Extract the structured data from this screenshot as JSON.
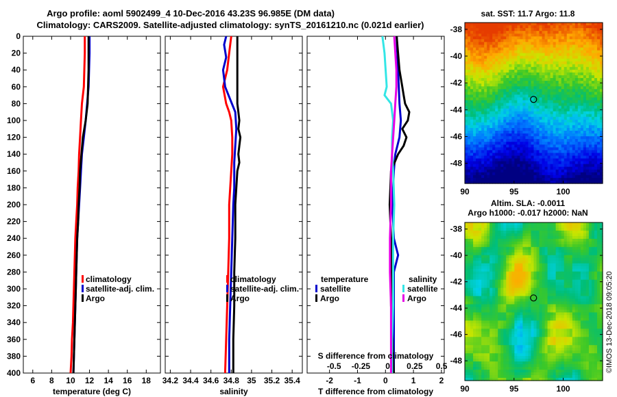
{
  "title": {
    "line1": "Argo profile: aoml 5902499_4 10-Dec-2016 43.23S 96.985E (DM data)",
    "line2": "Climatology: CARS2009. Satellite-adjusted climatology: synTS_20161210.nc (0.021d earlier)"
  },
  "colors": {
    "climatology": "#ff0000",
    "satellite_adj": "#0000cc",
    "argo": "#000000",
    "sat_salinity": "#33e6e6",
    "argo_salinity": "#e600e6",
    "circle": "#000000"
  },
  "depth_ticks": [
    0,
    20,
    40,
    60,
    80,
    100,
    120,
    140,
    160,
    180,
    200,
    220,
    240,
    260,
    280,
    300,
    320,
    340,
    360,
    380,
    400
  ],
  "chart_data": [
    {
      "type": "line",
      "name": "temperature-profile",
      "xlabel": "temperature (deg C)",
      "ylabel": "depth",
      "xlim": [
        5,
        19.5
      ],
      "ylim": [
        400,
        0
      ],
      "xticks": [
        6,
        8,
        10,
        12,
        14,
        16,
        18
      ],
      "xticklabels": [
        "6",
        "8",
        "10",
        "12",
        "14",
        "16",
        "18"
      ],
      "legend": [
        "climatology",
        "satellite-adj. clim.",
        "Argo"
      ],
      "series": [
        {
          "name": "climatology",
          "color": "#ff0000",
          "depth": [
            0,
            20,
            40,
            60,
            80,
            100,
            120,
            140,
            160,
            180,
            200,
            220,
            240,
            260,
            280,
            300,
            320,
            340,
            360,
            380,
            400
          ],
          "values": [
            11.5,
            11.5,
            11.45,
            11.4,
            11.2,
            11.1,
            11.0,
            10.9,
            10.85,
            10.75,
            10.7,
            10.6,
            10.5,
            10.45,
            10.4,
            10.35,
            10.3,
            10.25,
            10.15,
            10.1,
            10.0
          ]
        },
        {
          "name": "satellite-adj. clim.",
          "color": "#0000cc",
          "depth": [
            0,
            20,
            40,
            60,
            80,
            100,
            120,
            140,
            160,
            180,
            200,
            220,
            240,
            260,
            280,
            300,
            320,
            340,
            360,
            380,
            400
          ],
          "values": [
            12.0,
            12.0,
            11.95,
            11.9,
            11.75,
            11.6,
            11.4,
            11.2,
            11.1,
            11.0,
            10.9,
            10.8,
            10.7,
            10.65,
            10.6,
            10.55,
            10.5,
            10.45,
            10.4,
            10.35,
            10.3
          ]
        },
        {
          "name": "Argo",
          "color": "#000000",
          "depth": [
            0,
            20,
            40,
            60,
            80,
            100,
            120,
            140,
            160,
            180,
            200,
            220,
            240,
            260,
            280,
            300,
            320,
            340,
            360,
            380,
            400
          ],
          "values": [
            11.9,
            11.9,
            11.9,
            11.85,
            11.8,
            11.6,
            11.3,
            11.15,
            11.0,
            10.95,
            10.85,
            10.8,
            10.7,
            10.65,
            10.6,
            10.55,
            10.5,
            10.45,
            10.4,
            10.35,
            10.3
          ]
        }
      ]
    },
    {
      "type": "line",
      "name": "salinity-profile",
      "xlabel": "salinity",
      "ylabel": "depth",
      "xlim": [
        34.15,
        35.5
      ],
      "ylim": [
        400,
        0
      ],
      "xticks": [
        34.2,
        34.4,
        34.6,
        34.8,
        35,
        35.2,
        35.4
      ],
      "xticklabels": [
        "34.2",
        "34.4",
        "34.6",
        "34.8",
        "35",
        "35.2",
        "35.4"
      ],
      "legend": [
        "climatology",
        "satellite-adj. clim.",
        "Argo"
      ],
      "series": [
        {
          "name": "climatology",
          "color": "#ff0000",
          "depth": [
            0,
            20,
            40,
            60,
            80,
            90,
            100,
            120,
            140,
            160,
            180,
            200,
            240,
            280,
            320,
            360,
            400
          ],
          "values": [
            34.8,
            34.78,
            34.76,
            34.72,
            34.75,
            34.78,
            34.8,
            34.81,
            34.81,
            34.8,
            34.79,
            34.78,
            34.78,
            34.77,
            34.76,
            34.75,
            34.74
          ]
        },
        {
          "name": "satellite-adj. clim.",
          "color": "#0000cc",
          "depth": [
            0,
            10,
            25,
            40,
            60,
            75,
            90,
            110,
            130,
            150,
            180,
            200,
            240,
            280,
            320,
            360,
            400
          ],
          "values": [
            34.75,
            34.73,
            34.75,
            34.72,
            34.74,
            34.79,
            34.84,
            34.85,
            34.84,
            34.83,
            34.83,
            34.82,
            34.81,
            34.8,
            34.79,
            34.78,
            34.78
          ]
        },
        {
          "name": "Argo",
          "color": "#000000",
          "depth": [
            0,
            40,
            80,
            90,
            100,
            110,
            120,
            130,
            140,
            150,
            160,
            180,
            200,
            240,
            280,
            320,
            360,
            400
          ],
          "values": [
            34.86,
            34.86,
            34.86,
            34.87,
            34.88,
            34.87,
            34.89,
            34.88,
            34.87,
            34.88,
            34.86,
            34.85,
            34.84,
            34.84,
            34.83,
            34.83,
            34.82,
            34.82
          ]
        }
      ]
    },
    {
      "type": "line",
      "name": "difference-profile",
      "xlabel": "T difference from climatology",
      "xlim": [
        -2.8,
        2.1
      ],
      "ylim": [
        400,
        0
      ],
      "xticks": [
        -2,
        -1,
        0,
        1,
        2
      ],
      "xticklabels": [
        "-2",
        "-1",
        "0",
        "1",
        "2"
      ],
      "secondary_xlabel": "S difference from climatology",
      "secondary_xticks": [
        -0.5,
        -0.25,
        0,
        0.25,
        0.5
      ],
      "secondary_xticklabels": [
        "-0.5",
        "-0.25",
        "0",
        "0.25",
        "0.5"
      ],
      "legend_temperature_title": "temperature",
      "legend_salinity_title": "salinity",
      "legend": [
        "satellite",
        "Argo",
        "satellite",
        "Argo"
      ],
      "series": [
        {
          "name": "T satellite",
          "color": "#0000cc",
          "depth": [
            0,
            40,
            80,
            100,
            120,
            140,
            160,
            200,
            240,
            260,
            280,
            320,
            360,
            400
          ],
          "values": [
            0.4,
            0.45,
            0.5,
            0.55,
            0.5,
            0.35,
            0.3,
            0.25,
            0.3,
            0.45,
            0.3,
            0.3,
            0.3,
            0.3
          ]
        },
        {
          "name": "T Argo",
          "color": "#000000",
          "depth": [
            0,
            40,
            60,
            70,
            80,
            90,
            100,
            110,
            120,
            130,
            140,
            160,
            200,
            240,
            280,
            320,
            360,
            400
          ],
          "values": [
            0.4,
            0.5,
            0.6,
            0.65,
            0.7,
            0.85,
            0.8,
            0.6,
            0.75,
            0.65,
            0.45,
            0.2,
            0.15,
            0.2,
            0.2,
            0.2,
            0.25,
            0.3
          ]
        },
        {
          "name": "S satellite",
          "color": "#33e6e6",
          "depth": [
            0,
            20,
            40,
            60,
            70,
            80,
            100,
            120,
            140,
            160,
            200,
            240,
            280,
            320,
            360,
            400
          ],
          "values": [
            -0.05,
            -0.03,
            -0.02,
            -0.01,
            -0.03,
            0.03,
            0.05,
            0.04,
            0.04,
            0.05,
            0.06,
            0.05,
            0.05,
            0.05,
            0.04,
            0.04
          ]
        },
        {
          "name": "S Argo",
          "color": "#e600e6",
          "depth": [
            0,
            40,
            60,
            80,
            100,
            120,
            140,
            160,
            200,
            240,
            280,
            320,
            360,
            400
          ],
          "values": [
            0.06,
            0.08,
            0.08,
            0.07,
            0.06,
            0.05,
            0.04,
            0.03,
            0.03,
            0.02,
            0.02,
            0.03,
            0.03,
            0.03
          ]
        }
      ]
    },
    {
      "type": "heatmap",
      "name": "sst-map",
      "title": "sat. SST: 11.7 Argo: 11.8",
      "xlim": [
        90,
        104
      ],
      "ylim": [
        -49.5,
        -37.5
      ],
      "xticks": [
        90,
        95,
        100
      ],
      "xticklabels": [
        "90",
        "95",
        "100"
      ],
      "yticks": [
        -38,
        -40,
        -42,
        -44,
        -46,
        -48
      ],
      "yticklabels": [
        "-38",
        "-40",
        "-42",
        "-44",
        "-46",
        "-48"
      ],
      "marker": {
        "lon": 96.985,
        "lat": -43.23
      }
    },
    {
      "type": "heatmap",
      "name": "sla-map",
      "title": "Altim. SLA: -0.0011",
      "subtitle": "Argo h1000: -0.017 h2000: NaN",
      "xlim": [
        90,
        104
      ],
      "ylim": [
        -49.5,
        -37.5
      ],
      "xticks": [
        90,
        95,
        100
      ],
      "xticklabels": [
        "90",
        "95",
        "100"
      ],
      "yticks": [
        -38,
        -40,
        -42,
        -44,
        -46,
        -48
      ],
      "yticklabels": [
        "-38",
        "-40",
        "-42",
        "-44",
        "-46",
        "-48"
      ],
      "marker": {
        "lon": 96.985,
        "lat": -43.23
      }
    }
  ],
  "watermark": "©IMOS 13-Dec-2018 09:05:20"
}
